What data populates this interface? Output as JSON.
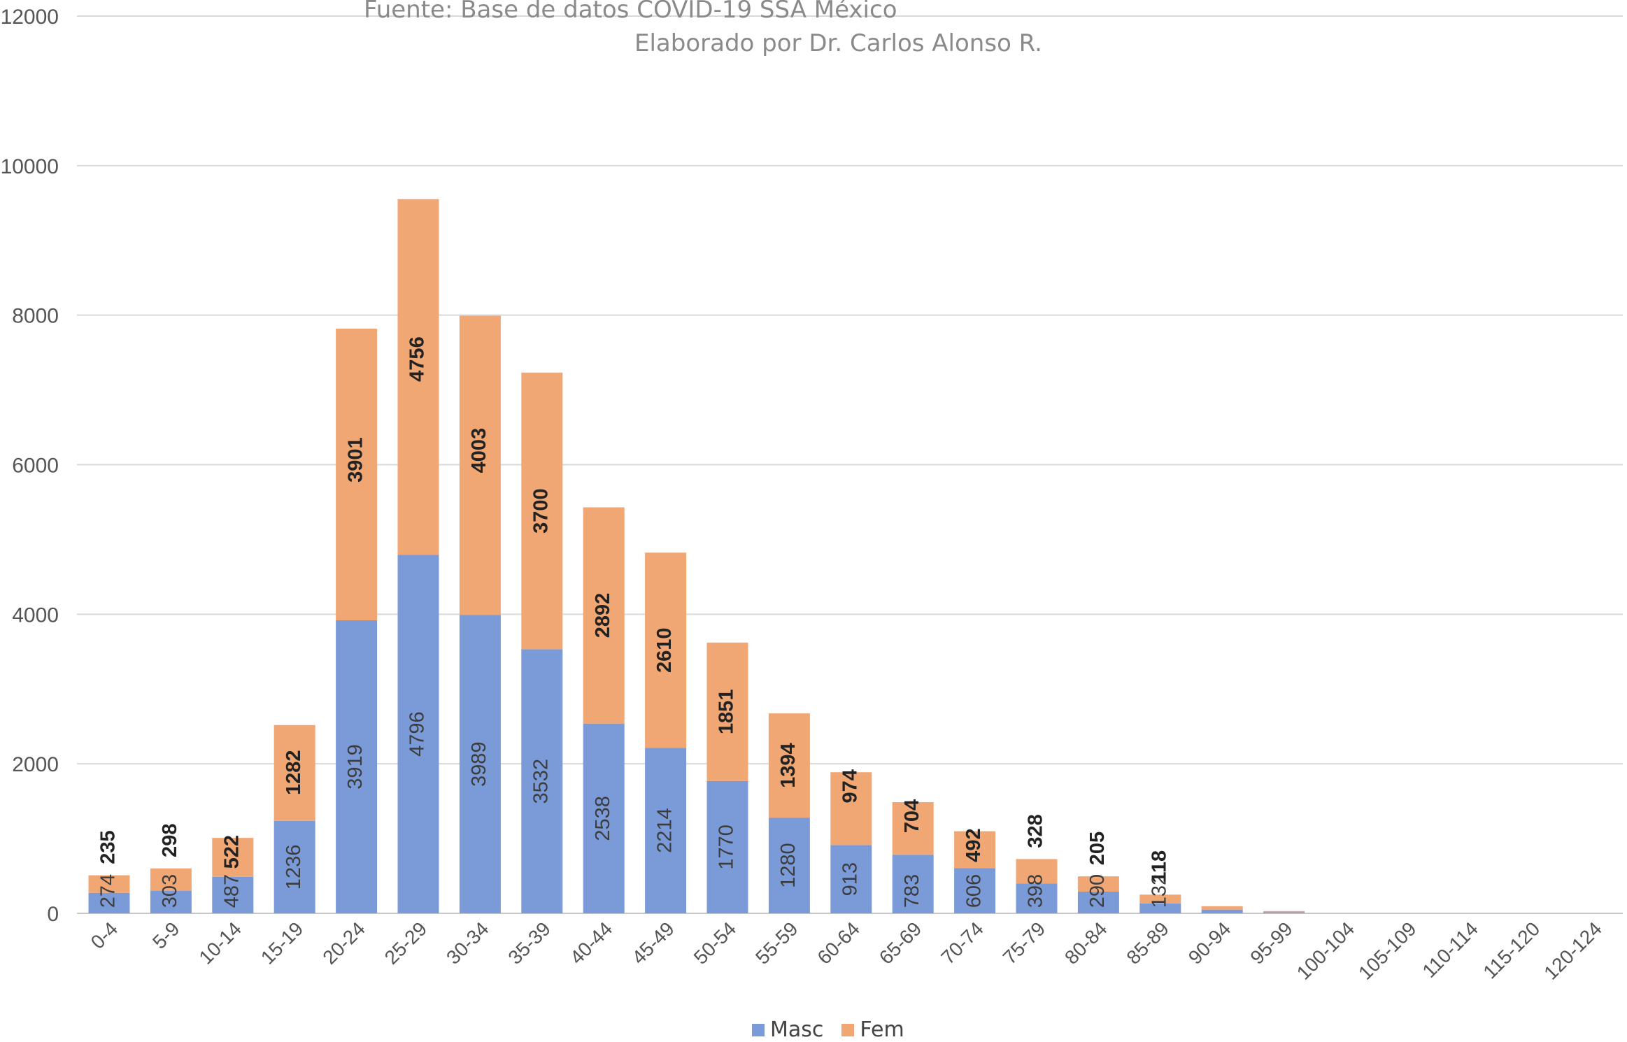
{
  "texts": {
    "source": "Fuente: Base de datos COVID-19 SSA México",
    "author": "Elaborado por Dr. Carlos Alonso R."
  },
  "colors": {
    "masc": "#7b9bd8",
    "fem": "#f0a774",
    "grid": "#d9d9d9",
    "axis_text": "#555555",
    "label_text": "#222222"
  },
  "chart_data": {
    "type": "bar",
    "stacked": true,
    "title": "",
    "xlabel": "",
    "ylabel": "",
    "ylim": [
      0,
      12000
    ],
    "yticks": [
      0,
      2000,
      4000,
      6000,
      8000,
      10000,
      12000
    ],
    "grid": true,
    "legend_position": "bottom",
    "categories": [
      "0-4",
      "5-9",
      "10-14",
      "15-19",
      "20-24",
      "25-29",
      "30-34",
      "35-39",
      "40-44",
      "45-49",
      "50-54",
      "55-59",
      "60-64",
      "65-69",
      "70-74",
      "75-79",
      "80-84",
      "85-89",
      "90-94",
      "95-99",
      "100-104",
      "105-109",
      "110-114",
      "115-120",
      "120-124"
    ],
    "series": [
      {
        "name": "Masc",
        "values": [
          274,
          303,
          487,
          1236,
          3919,
          4796,
          3989,
          3532,
          2538,
          2214,
          1770,
          1280,
          913,
          783,
          606,
          398,
          290,
          132,
          50,
          15,
          0,
          0,
          0,
          0,
          0
        ],
        "labels": [
          "274",
          "303",
          "487",
          "1236",
          "3919",
          "4796",
          "3989",
          "3532",
          "2538",
          "2214",
          "1770",
          "1280",
          "913",
          "783",
          "606",
          "398",
          "290",
          "132",
          "",
          "",
          "",
          "",
          "",
          "",
          ""
        ]
      },
      {
        "name": "Fem",
        "values": [
          235,
          298,
          522,
          1282,
          3901,
          4756,
          4003,
          3700,
          2892,
          2610,
          1851,
          1394,
          974,
          704,
          492,
          328,
          205,
          118,
          45,
          15,
          0,
          0,
          0,
          0,
          0
        ],
        "labels": [
          "235",
          "298",
          "522",
          "1282",
          "3901",
          "4756",
          "4003",
          "3700",
          "2892",
          "2610",
          "1851",
          "1394",
          "974",
          "704",
          "492",
          "328",
          "205",
          "118",
          "",
          "",
          "",
          "",
          "",
          "",
          ""
        ]
      }
    ]
  }
}
